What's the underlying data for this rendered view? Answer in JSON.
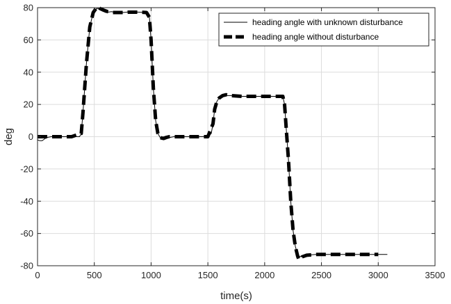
{
  "chart_data": {
    "type": "line",
    "xlabel": "time(s)",
    "ylabel": "deg",
    "xlim": [
      0,
      3500
    ],
    "ylim": [
      -80,
      80
    ],
    "xticks": [
      0,
      500,
      1000,
      1500,
      2000,
      2500,
      3000,
      3500
    ],
    "yticks": [
      -80,
      -60,
      -40,
      -20,
      0,
      20,
      40,
      60,
      80
    ],
    "grid": true,
    "legend_position": "top-right",
    "series": [
      {
        "name": "heading angle with unknown disturbance",
        "style": "solid-thin",
        "color": "#000000",
        "x": [
          0,
          20,
          40,
          60,
          80,
          120,
          200,
          300,
          370,
          385,
          400,
          430,
          460,
          490,
          520,
          540,
          560,
          600,
          650,
          700,
          750,
          800,
          850,
          900,
          960,
          985,
          1000,
          1020,
          1040,
          1060,
          1080,
          1100,
          1110,
          1130,
          1160,
          1200,
          1300,
          1400,
          1500,
          1530,
          1545,
          1560,
          1580,
          1600,
          1630,
          1660,
          1700,
          1750,
          1800,
          1900,
          2000,
          2100,
          2160,
          2175,
          2190,
          2210,
          2230,
          2250,
          2270,
          2290,
          2300,
          2330,
          2370,
          2450,
          2600,
          2800,
          3000,
          3080
        ],
        "y": [
          -2,
          -2.5,
          -2.5,
          -1.5,
          -0.5,
          0,
          0,
          0,
          0,
          2,
          15,
          45,
          68,
          77,
          79.5,
          79.5,
          78.5,
          77,
          77.5,
          77,
          77,
          77.3,
          77.3,
          77.2,
          77,
          74,
          60,
          30,
          10,
          2,
          -0.5,
          -1.5,
          -2,
          -1.5,
          -0.5,
          0,
          0,
          0,
          0,
          2,
          8,
          17,
          22,
          24,
          25,
          25.5,
          25.5,
          25.5,
          25,
          25,
          25,
          25,
          25,
          20,
          5,
          -15,
          -40,
          -58,
          -68,
          -73,
          -74,
          -74.5,
          -73.5,
          -73,
          -73,
          -73,
          -73,
          -73
        ]
      },
      {
        "name": "heading angle without disturbance",
        "style": "dashed-thick",
        "color": "#000000",
        "x": [
          0,
          50,
          100,
          200,
          300,
          385,
          400,
          430,
          460,
          490,
          520,
          535,
          550,
          580,
          620,
          660,
          700,
          750,
          800,
          850,
          900,
          960,
          985,
          1000,
          1020,
          1040,
          1060,
          1080,
          1100,
          1110,
          1130,
          1160,
          1200,
          1300,
          1400,
          1500,
          1545,
          1560,
          1580,
          1600,
          1630,
          1660,
          1700,
          1800,
          1900,
          2000,
          2100,
          2160,
          2175,
          2190,
          2210,
          2230,
          2250,
          2270,
          2290,
          2300,
          2310,
          2330,
          2370,
          2450,
          2600,
          2800,
          3000
        ],
        "y": [
          0,
          0,
          0,
          0,
          0,
          2,
          15,
          45,
          68,
          77,
          80,
          80.5,
          79.5,
          78.5,
          77.5,
          77,
          77,
          77,
          77.2,
          77.2,
          77.2,
          77,
          74,
          60,
          30,
          10,
          2,
          -0.5,
          -1,
          -1,
          -0.5,
          0,
          0,
          0,
          0,
          0,
          8,
          17,
          22,
          24,
          25.5,
          26,
          25.5,
          25,
          25,
          25,
          25,
          25,
          20,
          5,
          -15,
          -40,
          -58,
          -68,
          -74,
          -76,
          -76,
          -74.5,
          -73.5,
          -73,
          -73,
          -73,
          -73
        ]
      }
    ]
  }
}
